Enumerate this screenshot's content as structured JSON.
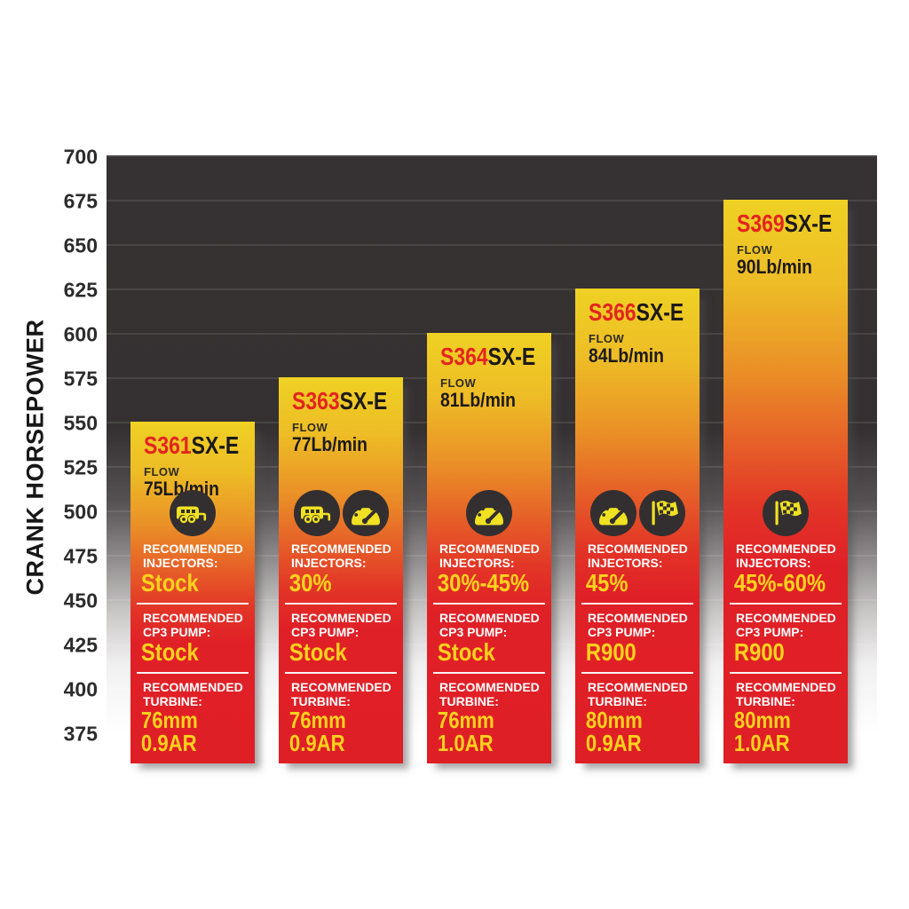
{
  "chart_data": {
    "type": "bar",
    "title": "",
    "xlabel": "",
    "ylabel": "CRANK HORSEPOWER",
    "ylim": [
      357.5,
      700
    ],
    "yticks": [
      700,
      675,
      650,
      625,
      600,
      575,
      550,
      525,
      500,
      475,
      450,
      425,
      400,
      375
    ],
    "grid": true,
    "legend": false,
    "categories": [
      "S361SX-E",
      "S363SX-E",
      "S364SX-E",
      "S366SX-E",
      "S369SX-E"
    ],
    "values": [
      550,
      575,
      600,
      625,
      675
    ],
    "bars": [
      {
        "model_prefix": "S361",
        "model_suffix": "SX-E",
        "flow_label": "FLOW",
        "flow": "75Lb/min",
        "crank_horsepower": 550,
        "icons": [
          "towing-icon"
        ],
        "injectors_label_1": "RECOMMENDED",
        "injectors_label_2": "INJECTORS:",
        "injectors": "Stock",
        "cp3_label_1": "RECOMMENDED",
        "cp3_label_2": "CP3 PUMP:",
        "cp3_pump": "Stock",
        "turbine_label_1": "RECOMMENDED",
        "turbine_label_2": "TURBINE:",
        "turbine_mm": "76mm",
        "turbine_ar": "0.9AR"
      },
      {
        "model_prefix": "S363",
        "model_suffix": "SX-E",
        "flow_label": "FLOW",
        "flow": "77Lb/min",
        "crank_horsepower": 575,
        "icons": [
          "towing-icon",
          "gauge-icon"
        ],
        "injectors_label_1": "RECOMMENDED",
        "injectors_label_2": "INJECTORS:",
        "injectors": "30%",
        "cp3_label_1": "RECOMMENDED",
        "cp3_label_2": "CP3 PUMP:",
        "cp3_pump": "Stock",
        "turbine_label_1": "RECOMMENDED",
        "turbine_label_2": "TURBINE:",
        "turbine_mm": "76mm",
        "turbine_ar": "0.9AR"
      },
      {
        "model_prefix": "S364",
        "model_suffix": "SX-E",
        "flow_label": "FLOW",
        "flow": "81Lb/min",
        "crank_horsepower": 600,
        "icons": [
          "gauge-icon"
        ],
        "injectors_label_1": "RECOMMENDED",
        "injectors_label_2": "INJECTORS:",
        "injectors": "30%-45%",
        "cp3_label_1": "RECOMMENDED",
        "cp3_label_2": "CP3 PUMP:",
        "cp3_pump": "Stock",
        "turbine_label_1": "RECOMMENDED",
        "turbine_label_2": "TURBINE:",
        "turbine_mm": "76mm",
        "turbine_ar": "1.0AR"
      },
      {
        "model_prefix": "S366",
        "model_suffix": "SX-E",
        "flow_label": "FLOW",
        "flow": "84Lb/min",
        "crank_horsepower": 625,
        "icons": [
          "gauge-icon",
          "race-flag-icon"
        ],
        "injectors_label_1": "RECOMMENDED",
        "injectors_label_2": "INJECTORS:",
        "injectors": "45%",
        "cp3_label_1": "RECOMMENDED",
        "cp3_label_2": "CP3 PUMP:",
        "cp3_pump": "R900",
        "turbine_label_1": "RECOMMENDED",
        "turbine_label_2": "TURBINE:",
        "turbine_mm": "80mm",
        "turbine_ar": "0.9AR"
      },
      {
        "model_prefix": "S369",
        "model_suffix": "SX-E",
        "flow_label": "FLOW",
        "flow": "90Lb/min",
        "crank_horsepower": 675,
        "icons": [
          "race-flag-icon"
        ],
        "injectors_label_1": "RECOMMENDED",
        "injectors_label_2": "INJECTORS:",
        "injectors": "45%-60%",
        "cp3_label_1": "RECOMMENDED",
        "cp3_label_2": "CP3 PUMP:",
        "cp3_pump": "R900",
        "turbine_label_1": "RECOMMENDED",
        "turbine_label_2": "TURBINE:",
        "turbine_mm": "80mm",
        "turbine_ar": "1.0AR"
      }
    ],
    "colors": {
      "bar_gradient_top": "#efd124",
      "bar_gradient_bottom": "#df1f26",
      "model_red": "#e3251f",
      "model_black": "#1c191a",
      "value_yellow": "#ffd21e",
      "label_white": "#ffffff",
      "plot_background_dark": "#363233",
      "icon_circle": "#332f30",
      "icon_glyph": "#f0e122"
    }
  }
}
